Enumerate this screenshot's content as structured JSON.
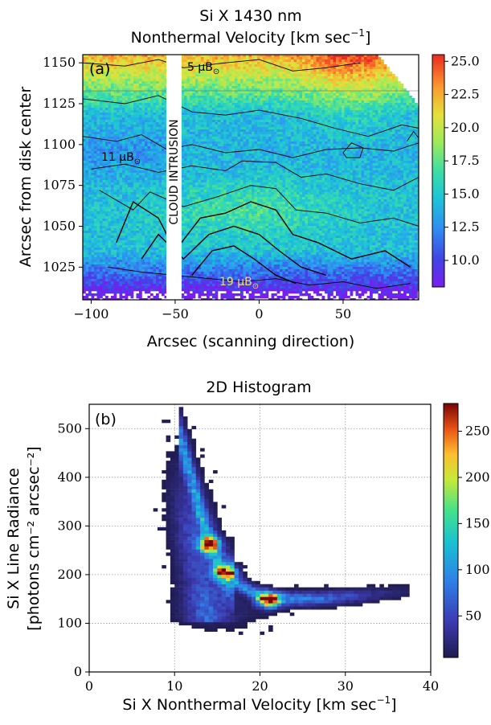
{
  "chart_data": [
    {
      "type": "heatmap",
      "title_line1": "Si X 1430 nm",
      "title_line2": "Nonthermal Velocity [km sec",
      "title_sup": "−1",
      "title_end": "]",
      "panel_label": "(a)",
      "xlabel": "Arcsec (scanning direction)",
      "ylabel": "Arcsec from disk center",
      "xlim": [
        -105,
        95
      ],
      "ylim": [
        1005,
        1155
      ],
      "xticks": [
        -100,
        -50,
        0,
        50
      ],
      "xtick_labels": [
        "−100",
        "−50",
        "0",
        "50"
      ],
      "yticks": [
        1025,
        1050,
        1075,
        1100,
        1125,
        1150
      ],
      "colorbar": {
        "min": 8,
        "max": 25.5,
        "ticks": [
          10.0,
          12.5,
          15.0,
          17.5,
          20.0,
          22.5,
          25.0
        ],
        "tick_labels": [
          "10.0",
          "12.5",
          "15.0",
          "17.5",
          "20.0",
          "22.5",
          "25.0"
        ]
      },
      "annotations": {
        "cloud": "CLOUD INTRUSION",
        "contour_5": "5 μB",
        "contour_11": "11 μB",
        "contour_19": "19 μB",
        "sun_symbol": "⊙"
      }
    },
    {
      "type": "heatmap",
      "title": "2D Histogram",
      "panel_label": "(b)",
      "xlabel_main": "Si X Nonthermal Velocity [km sec",
      "xlabel_sup": "−1",
      "xlabel_end": "]",
      "ylabel_line1": "Si X Line Radiance",
      "ylabel_line2": "[photons cm⁻² arcsec⁻²]",
      "xlim": [
        0,
        40
      ],
      "ylim": [
        0,
        550
      ],
      "xticks": [
        0,
        10,
        20,
        30,
        40
      ],
      "yticks": [
        0,
        100,
        200,
        300,
        400,
        500
      ],
      "grid": true,
      "colorbar": {
        "min": 5,
        "max": 280,
        "ticks": [
          50,
          100,
          150,
          200,
          250
        ],
        "tick_labels": [
          "50",
          "100",
          "150",
          "200",
          "250"
        ]
      },
      "density_ridge": [
        {
          "velocity": 10,
          "radiance": 520
        },
        {
          "velocity": 11,
          "radiance": 460
        },
        {
          "velocity": 12,
          "radiance": 400
        },
        {
          "velocity": 13,
          "radiance": 330
        },
        {
          "velocity": 14,
          "radiance": 270
        },
        {
          "velocity": 15,
          "radiance": 230
        },
        {
          "velocity": 16,
          "radiance": 200
        },
        {
          "velocity": 18,
          "radiance": 175
        },
        {
          "velocity": 20,
          "radiance": 158
        },
        {
          "velocity": 22,
          "radiance": 150
        },
        {
          "velocity": 26,
          "radiance": 150
        },
        {
          "velocity": 30,
          "radiance": 155
        },
        {
          "velocity": 34,
          "radiance": 160
        },
        {
          "velocity": 37,
          "radiance": 165
        }
      ],
      "peaks": [
        {
          "velocity": 21,
          "radiance": 148,
          "count": 275
        },
        {
          "velocity": 16,
          "radiance": 205,
          "count": 240
        },
        {
          "velocity": 14,
          "radiance": 262,
          "count": 220
        }
      ]
    }
  ]
}
